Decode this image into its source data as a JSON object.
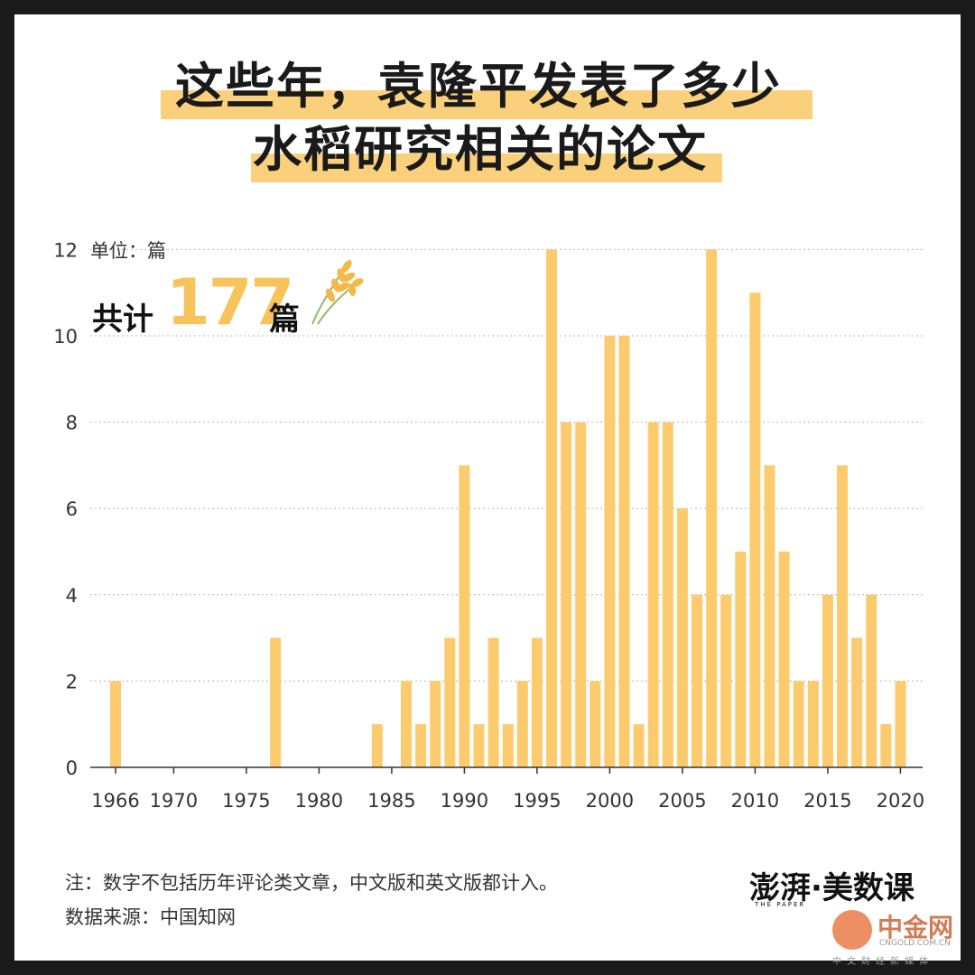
{
  "title": {
    "line1": "这些年，袁隆平发表了多少",
    "line2": "水稻研究相关的论文"
  },
  "unit_label": "单位：篇",
  "total": {
    "prefix": "共计",
    "number": "177",
    "suffix": "篇"
  },
  "notes": {
    "note1": "注：数字不包括历年评论类文章，中文版和英文版都计入。",
    "source": "数据来源：中国知网"
  },
  "brand": {
    "name": "澎湃·美数课",
    "sub": "THE PAPER"
  },
  "watermark": {
    "cn": "中金网",
    "en": "CNGOLD.COM.CN",
    "sub": "中文财经新媒体"
  },
  "colors": {
    "bar": "#fbcb6e",
    "highlight": "#fbd07c",
    "accent": "#f9c35b"
  },
  "chart_data": {
    "type": "bar",
    "x": [
      1966,
      1977,
      1984,
      1986,
      1987,
      1988,
      1989,
      1990,
      1991,
      1992,
      1993,
      1994,
      1995,
      1996,
      1997,
      1998,
      1999,
      2000,
      2001,
      2002,
      2003,
      2004,
      2005,
      2006,
      2007,
      2008,
      2009,
      2010,
      2011,
      2012,
      2013,
      2014,
      2015,
      2016,
      2017,
      2018,
      2019,
      2020
    ],
    "values": [
      2,
      3,
      1,
      2,
      1,
      2,
      3,
      7,
      1,
      3,
      1,
      2,
      3,
      12,
      8,
      8,
      2,
      10,
      10,
      1,
      8,
      8,
      6,
      4,
      12,
      4,
      5,
      11,
      7,
      5,
      2,
      2,
      4,
      7,
      3,
      4,
      1,
      2
    ],
    "xticks": [
      "1966",
      "1970",
      "1975",
      "1980",
      "1985",
      "1990",
      "1995",
      "2000",
      "2005",
      "2010",
      "2015",
      "2020"
    ],
    "yticks": [
      "0",
      "2",
      "4",
      "6",
      "8",
      "10",
      "12"
    ],
    "ylim": [
      0,
      12
    ],
    "xlim": [
      1966,
      2020
    ],
    "grid": true
  }
}
